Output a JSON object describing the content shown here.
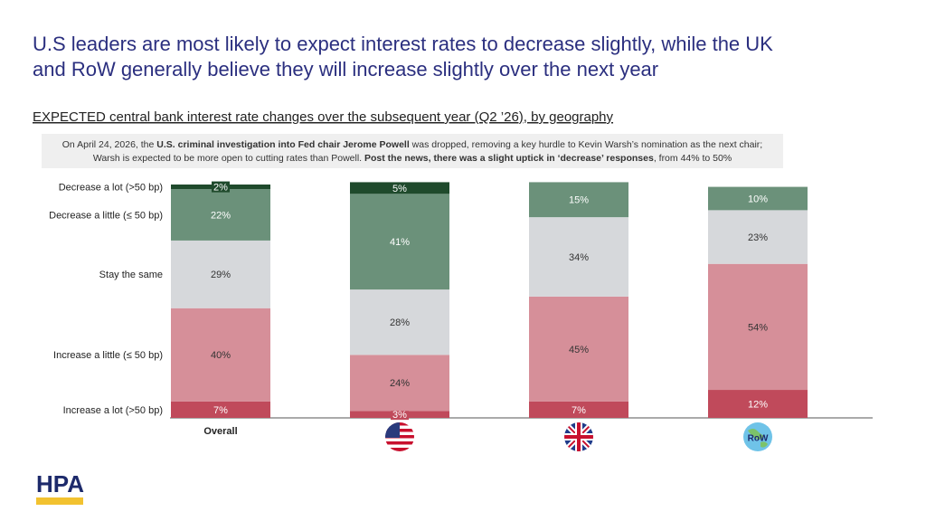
{
  "chart_data": {
    "type": "stacked_bar",
    "title": [
      "U.S leaders are most likely to expect interest rates to decrease slightly, while the UK",
      "and RoW generally believe they will increase slightly over the next year"
    ],
    "subtitle": "EXPECTED central bank interest rate changes over the subsequent year (Q2 ’26), by geography",
    "annotation": [
      [
        {
          "text": "On April 24, 2026, the ",
          "bold": false
        },
        {
          "text": "U.S. criminal investigation into Fed chair Jerome Powell",
          "bold": true
        },
        {
          "text": " was dropped, removing a key hurdle to Kevin Warsh’s nomination as the next chair;",
          "bold": false
        }
      ],
      [
        {
          "text": "Warsh is expected to be more open to cutting rates than Powell. ",
          "bold": false
        },
        {
          "text": "Post the news, there was a slight uptick in ‘decrease’ responses",
          "bold": true
        },
        {
          "text": ", from 44% to 50%",
          "bold": false
        }
      ]
    ],
    "categories": [
      "Overall",
      null,
      null,
      "RoW"
    ],
    "ylim": [
      0,
      100
    ],
    "series": [
      {
        "name": "Increase a lot (>50 bp)",
        "color": "#c04a5b",
        "label_color": "#ffffff",
        "values": [
          7,
          3,
          7,
          12
        ],
        "value_labels": [
          "7%",
          "3%",
          "7%",
          "12%"
        ]
      },
      {
        "name": "Increase a little (≤ 50 bp)",
        "color": "#d68f99",
        "label_color": "#333333",
        "values": [
          40,
          24,
          45,
          54
        ],
        "value_labels": [
          "40%",
          "24%",
          "45%",
          "54%"
        ]
      },
      {
        "name": "Stay the same",
        "color": "#d6d8db",
        "label_color": "#333333",
        "values": [
          29,
          28,
          34,
          23
        ],
        "value_labels": [
          "29%",
          "28%",
          "34%",
          "23%"
        ]
      },
      {
        "name": "Decrease a little (≤ 50 bp)",
        "color": "#6b917a",
        "label_color": "#ffffff",
        "values": [
          22,
          41,
          15,
          10
        ],
        "value_labels": [
          "22%",
          "41%",
          "15%",
          "10%"
        ]
      },
      {
        "name": "Decrease a lot (>50 bp)",
        "color": "#1f4a2c",
        "label_color": "#ffffff",
        "values": [
          2,
          5,
          null,
          null
        ],
        "value_labels": [
          "2%",
          "5%",
          null,
          null
        ]
      }
    ]
  },
  "logo": {
    "text": "HPA"
  }
}
